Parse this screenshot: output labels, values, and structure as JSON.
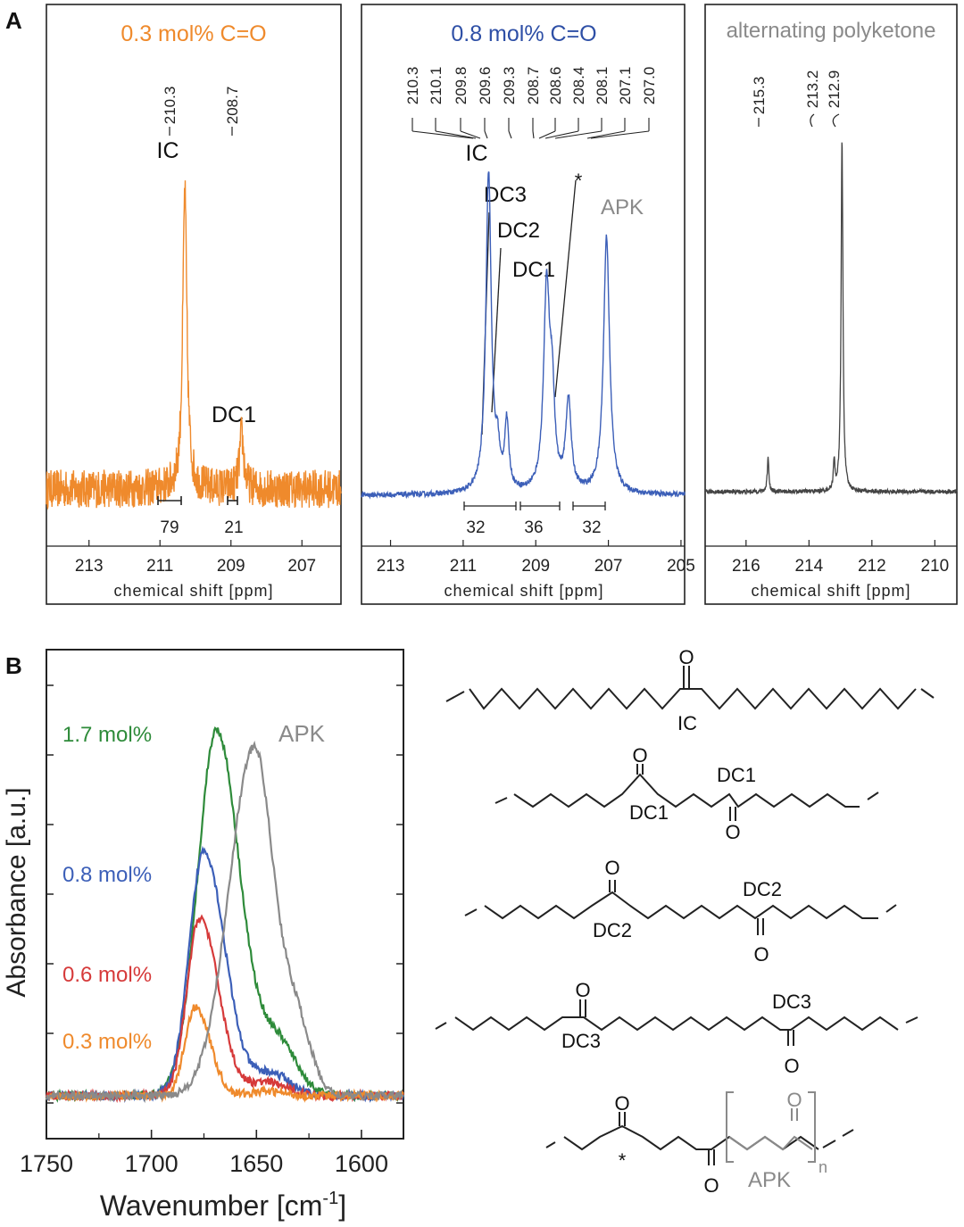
{
  "panel_labels": {
    "a": "A",
    "b": "B"
  },
  "chart_data": [
    {
      "type": "line",
      "id": "nmr1",
      "title": "0.3 mol% C=O",
      "title_color": "#ef8a2c",
      "color": "#ef8a2c",
      "xlabel": "chemical shift [ppm]",
      "xlim": [
        214.2,
        205.9
      ],
      "xticks": [
        "213",
        "211",
        "209",
        "207"
      ],
      "peak_labels": [
        "210.3",
        "208.7"
      ],
      "assignments": [
        "IC",
        "DC1"
      ],
      "integrals": [
        "79",
        "21"
      ],
      "peaks": [
        {
          "x": 210.3,
          "height": 0.93,
          "width": 0.07
        },
        {
          "x": 208.7,
          "height": 0.17,
          "width": 0.07
        }
      ],
      "noise": 0.06
    },
    {
      "type": "line",
      "id": "nmr2",
      "title": "0.8 mol% C=O",
      "title_color": "#2e4fa6",
      "color": "#3c5fb8",
      "xlabel": "chemical shift [ppm]",
      "xlim": [
        213.8,
        204.9
      ],
      "xticks": [
        "213",
        "211",
        "209",
        "207",
        "205"
      ],
      "peak_labels": [
        "210.3",
        "210.1",
        "209.8",
        "209.6",
        "209.3",
        "208.7",
        "208.6",
        "208.4",
        "208.1",
        "207.1",
        "207.0"
      ],
      "assignments": [
        "IC",
        "DC3",
        "DC2",
        "DC1",
        "*",
        "APK"
      ],
      "integrals": [
        "32",
        "36",
        "32"
      ],
      "peaks": [
        {
          "x": 210.3,
          "height": 0.96,
          "width": 0.09
        },
        {
          "x": 210.05,
          "height": 0.1,
          "width": 0.06
        },
        {
          "x": 209.8,
          "height": 0.2,
          "width": 0.07
        },
        {
          "x": 208.7,
          "height": 0.6,
          "width": 0.1
        },
        {
          "x": 208.55,
          "height": 0.25,
          "width": 0.08
        },
        {
          "x": 208.1,
          "height": 0.27,
          "width": 0.09
        },
        {
          "x": 207.05,
          "height": 0.77,
          "width": 0.1
        }
      ],
      "noise": 0.008
    },
    {
      "type": "line",
      "id": "nmr3",
      "title": "alternating polyketone",
      "title_color": "#8a8a8a",
      "color": "#444444",
      "xlabel": "chemical shift [ppm]",
      "xlim": [
        217.3,
        209.3
      ],
      "xticks": [
        "216",
        "214",
        "212",
        "210"
      ],
      "peak_labels": [
        "215.3",
        "213.2",
        "212.9"
      ],
      "peaks": [
        {
          "x": 215.3,
          "height": 0.1,
          "width": 0.03
        },
        {
          "x": 213.2,
          "height": 0.08,
          "width": 0.03
        },
        {
          "x": 212.95,
          "height": 1.0,
          "width": 0.035
        }
      ],
      "noise": 0.006
    },
    {
      "type": "line",
      "id": "ir",
      "xlabel": "Wavenumber [cm",
      "xlabel_sup": "-1",
      "xlabel_end": "]",
      "ylabel": "Absorbance [a.u.]",
      "xlim": [
        1750,
        1580
      ],
      "xticks": [
        "1750",
        "1700",
        "1650",
        "1600"
      ],
      "series": [
        {
          "name": "1.7 mol%",
          "color": "#2e8b3a",
          "peak": 1669,
          "height": 0.82,
          "w_low": 9,
          "w_high": 11,
          "shoulder": 1640,
          "shoulder_h": 0.12,
          "shoulder_w": 9
        },
        {
          "name": "0.8 mol%",
          "color": "#3c5fb8",
          "peak": 1675,
          "height": 0.55,
          "w_low": 7,
          "w_high": 10,
          "shoulder": 1643,
          "shoulder_h": 0.05,
          "shoulder_w": 9
        },
        {
          "name": "0.6 mol%",
          "color": "#d63a3a",
          "peak": 1677,
          "height": 0.4,
          "w_low": 6,
          "w_high": 9,
          "shoulder": 1645,
          "shoulder_h": 0.03,
          "shoulder_w": 9
        },
        {
          "name": "0.3 mol%",
          "color": "#ef8a2c",
          "peak": 1679,
          "height": 0.2,
          "w_low": 5,
          "w_high": 7,
          "shoulder": 1645,
          "shoulder_h": 0.01,
          "shoulder_w": 8
        },
        {
          "name": "APK",
          "color": "#8a8a8a",
          "peak": 1651,
          "height": 0.78,
          "w_low": 12,
          "w_high": 9,
          "shoulder": 1631,
          "shoulder_h": 0.16,
          "shoulder_w": 7
        }
      ]
    }
  ],
  "structures": {
    "ic": {
      "label": "IC",
      "o": "O"
    },
    "dc1": {
      "label": "DC1",
      "o": "O"
    },
    "dc2": {
      "label": "DC2",
      "o": "O"
    },
    "dc3": {
      "label": "DC3",
      "o": "O"
    },
    "apk": {
      "label": "APK",
      "o": "O",
      "star": "*",
      "n": "n"
    }
  }
}
